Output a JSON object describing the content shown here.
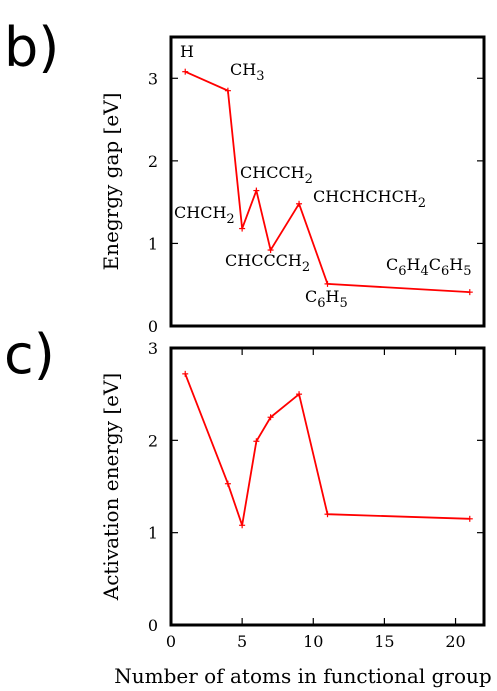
{
  "panels": {
    "b": "b)",
    "c": "c)"
  },
  "chart_data": [
    {
      "type": "line",
      "panel": "b",
      "ylabel": "Enegrgy gap [eV]",
      "xlabel": "",
      "xlim": [
        0,
        22
      ],
      "ylim": [
        0,
        3.5
      ],
      "yticks": [
        0,
        1,
        2,
        3
      ],
      "xticks": [],
      "color": "#ff0000",
      "series": [
        {
          "x": [
            1,
            4,
            5,
            6,
            7,
            9,
            11,
            21
          ],
          "y": [
            3.08,
            2.85,
            1.18,
            1.64,
            0.92,
            1.48,
            0.51,
            0.41
          ]
        }
      ],
      "annotations": [
        {
          "id": "H",
          "parts": [
            {
              "t": "H"
            }
          ]
        },
        {
          "id": "CH3",
          "parts": [
            {
              "t": "CH"
            },
            {
              "t": "3",
              "sub": true
            }
          ]
        },
        {
          "id": "CHCCH2",
          "parts": [
            {
              "t": "CHCCH"
            },
            {
              "t": "2",
              "sub": true
            }
          ]
        },
        {
          "id": "CHCH2",
          "parts": [
            {
              "t": "CHCH"
            },
            {
              "t": "2",
              "sub": true
            }
          ]
        },
        {
          "id": "CHCHCHCH2",
          "parts": [
            {
              "t": "CHCHCHCH"
            },
            {
              "t": "2",
              "sub": true
            }
          ]
        },
        {
          "id": "CHCCCH2",
          "parts": [
            {
              "t": "CHCCCH"
            },
            {
              "t": "2",
              "sub": true
            }
          ]
        },
        {
          "id": "C6H4C6H5",
          "parts": [
            {
              "t": "C"
            },
            {
              "t": "6",
              "sub": true
            },
            {
              "t": "H"
            },
            {
              "t": "4",
              "sub": true
            },
            {
              "t": "C"
            },
            {
              "t": "6",
              "sub": true
            },
            {
              "t": "H"
            },
            {
              "t": "5",
              "sub": true
            }
          ]
        },
        {
          "id": "C6H5",
          "parts": [
            {
              "t": "C"
            },
            {
              "t": "6",
              "sub": true
            },
            {
              "t": "H"
            },
            {
              "t": "5",
              "sub": true
            }
          ]
        }
      ]
    },
    {
      "type": "line",
      "panel": "c",
      "ylabel": "Activation energy [eV]",
      "xlabel": "Number of atoms in functional group",
      "xlim": [
        0,
        22
      ],
      "ylim": [
        0,
        3
      ],
      "yticks": [
        0,
        1,
        2,
        3
      ],
      "xticks": [
        0,
        5,
        10,
        15,
        20
      ],
      "color": "#ff0000",
      "series": [
        {
          "x": [
            1,
            4,
            5,
            6,
            7,
            9,
            11,
            21
          ],
          "y": [
            2.72,
            1.53,
            1.08,
            1.99,
            2.25,
            2.5,
            1.2,
            1.15
          ]
        }
      ],
      "annotations": []
    }
  ]
}
